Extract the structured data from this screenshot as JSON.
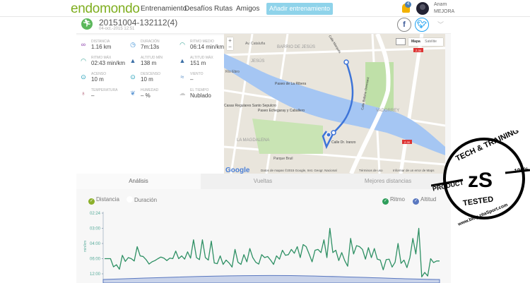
{
  "header": {
    "logo": "endomondo",
    "nav": [
      "Entrenamiento",
      "Desafíos",
      "Rutas",
      "Amigos"
    ],
    "add_button": "Añadir entrenamiento",
    "notifications": "4",
    "user_name": "Anam",
    "user_level": "MEJORA"
  },
  "workout": {
    "title": "20151004-132112(4)",
    "date": "04-oct.-2015 12:51",
    "share": [
      "f",
      "t"
    ]
  },
  "stats": [
    {
      "label": "Distancia",
      "value": "1.16 km",
      "icon": "distance-icon",
      "color": "#8e44ad"
    },
    {
      "label": "Duración",
      "value": "7m:13s",
      "icon": "stopwatch-icon",
      "color": "#3a8fd6"
    },
    {
      "label": "Ritmo medio",
      "value": "06:14 min/km",
      "icon": "gauge-icon",
      "color": "#2a9d8f"
    },
    {
      "label": "Ritmo máx",
      "value": "02:43 min/km",
      "icon": "gauge-icon",
      "color": "#2a9d8f"
    },
    {
      "label": "Altitud mín",
      "value": "138 m",
      "icon": "mountain-icon",
      "color": "#3a6ea5"
    },
    {
      "label": "Altitud máx",
      "value": "151 m",
      "icon": "mountain-icon",
      "color": "#3a6ea5"
    },
    {
      "label": "Acenso",
      "value": "10 m",
      "icon": "ascent-icon",
      "color": "#1a9bb5"
    },
    {
      "label": "Descenso",
      "value": "10 m",
      "icon": "descent-icon",
      "color": "#1a9bb5"
    },
    {
      "label": "Viento",
      "value": "–",
      "icon": "wind-icon",
      "color": "#5b8fc7"
    },
    {
      "label": "Temperatura",
      "value": "–",
      "icon": "thermometer-icon",
      "color": "#a0405a"
    },
    {
      "label": "Humedad",
      "value": "– %",
      "icon": "humidity-icon",
      "color": "#6a9fd8"
    },
    {
      "label": "El tiempo",
      "value": "Nublado",
      "icon": "cloud-icon",
      "color": "#ccc"
    }
  ],
  "map": {
    "zoom_in": "+",
    "zoom_out": "−",
    "types": [
      "Mapa",
      "Satélite"
    ],
    "labels": [
      "Av. Cataluña",
      "BARRIO DE JESÚS",
      "JESÚS",
      "Río Ebro",
      "Paseo de La Ribera",
      "Casas Regulares Santo Sepulcro",
      "Paseo Echegaray y Caballero",
      "LA MAGDALENA",
      "Parque Bruil",
      "VADORREY",
      "Calle Balbino Orensanz",
      "Calle Dr. Iranzo",
      "Paseo Echegaray y Caballero",
      "Calle Marqués"
    ],
    "road_badges": [
      "Z-30",
      "Z-30"
    ],
    "google": "Google",
    "attribution": "Datos de mapas ©2015 Google, Inst. Geogr. Nacional",
    "terms": "Términos de uso",
    "report": "Informar de un error de Maps"
  },
  "tabs": [
    "Análisis",
    "Vueltas",
    "Mejores distancias"
  ],
  "toggles": {
    "left": [
      {
        "label": "Distancia",
        "checked": true,
        "color": "#8cb02c"
      },
      {
        "label": "Duración",
        "checked": false
      }
    ],
    "right": [
      {
        "label": "Ritmo",
        "checked": true,
        "color": "#2e9e5b"
      },
      {
        "label": "Altitud",
        "checked": true,
        "color": "#5a78c0"
      }
    ]
  },
  "chart_data": {
    "type": "line",
    "ylabel": "min/km",
    "y_ticks": [
      "02:24",
      "03:00",
      "04:00",
      "06:00",
      "12:00"
    ],
    "series": [
      {
        "name": "Ritmo",
        "color": "#2e9064",
        "values": [
          6.0,
          6.0,
          6.0,
          8.2,
          7.5,
          9.2,
          5.4,
          6.6,
          5.8,
          6.0,
          6.5,
          4.3,
          5.5,
          5.6,
          6.2,
          7.3,
          6.7,
          6.4,
          6.0,
          5.7,
          5.9,
          6.4,
          5.9,
          6.0,
          4.8,
          6.0,
          5.5,
          6.1,
          4.9,
          5.9,
          3.7,
          5.8,
          6.2,
          3.7,
          5.8,
          6.3,
          3.8,
          7.0,
          7.2,
          5.5,
          7.4,
          6.3,
          7.0,
          8.3,
          4.6,
          6.8,
          7.4,
          5.3,
          6.7,
          4.5,
          5.8,
          6.8,
          7.3,
          5.3,
          5.8,
          5.6,
          6.3,
          7.4,
          5.5,
          6.1,
          4.7,
          5.4,
          5.3,
          4.6,
          5.1,
          4.3,
          5.8,
          4.1,
          4.3,
          5.2,
          6.7,
          4.7,
          4.6,
          5.0,
          3.7,
          5.8,
          3.0,
          5.0,
          4.7,
          6.4,
          5.0,
          6.4,
          8.0,
          3.6,
          5.2,
          4.2,
          4.3,
          4.6,
          6.1,
          4.4,
          5.8,
          4.5,
          6.1,
          6.3,
          9.5,
          6.2,
          6.1,
          8.3,
          6.8,
          4.0,
          7.1,
          6.3,
          8.5,
          5.8,
          3.6,
          5.2,
          3.0,
          15,
          11,
          14,
          6.0,
          6.9,
          6.5,
          6.5
        ]
      },
      {
        "name": "Altitud",
        "color": "#5a78c0"
      }
    ]
  },
  "stamp": {
    "top": "TECH & TRAINING",
    "left": "PRODUCT",
    "right": "100%",
    "center": "zS",
    "bottom": "TESTED",
    "url": "www.blog.zitaSport.com"
  }
}
